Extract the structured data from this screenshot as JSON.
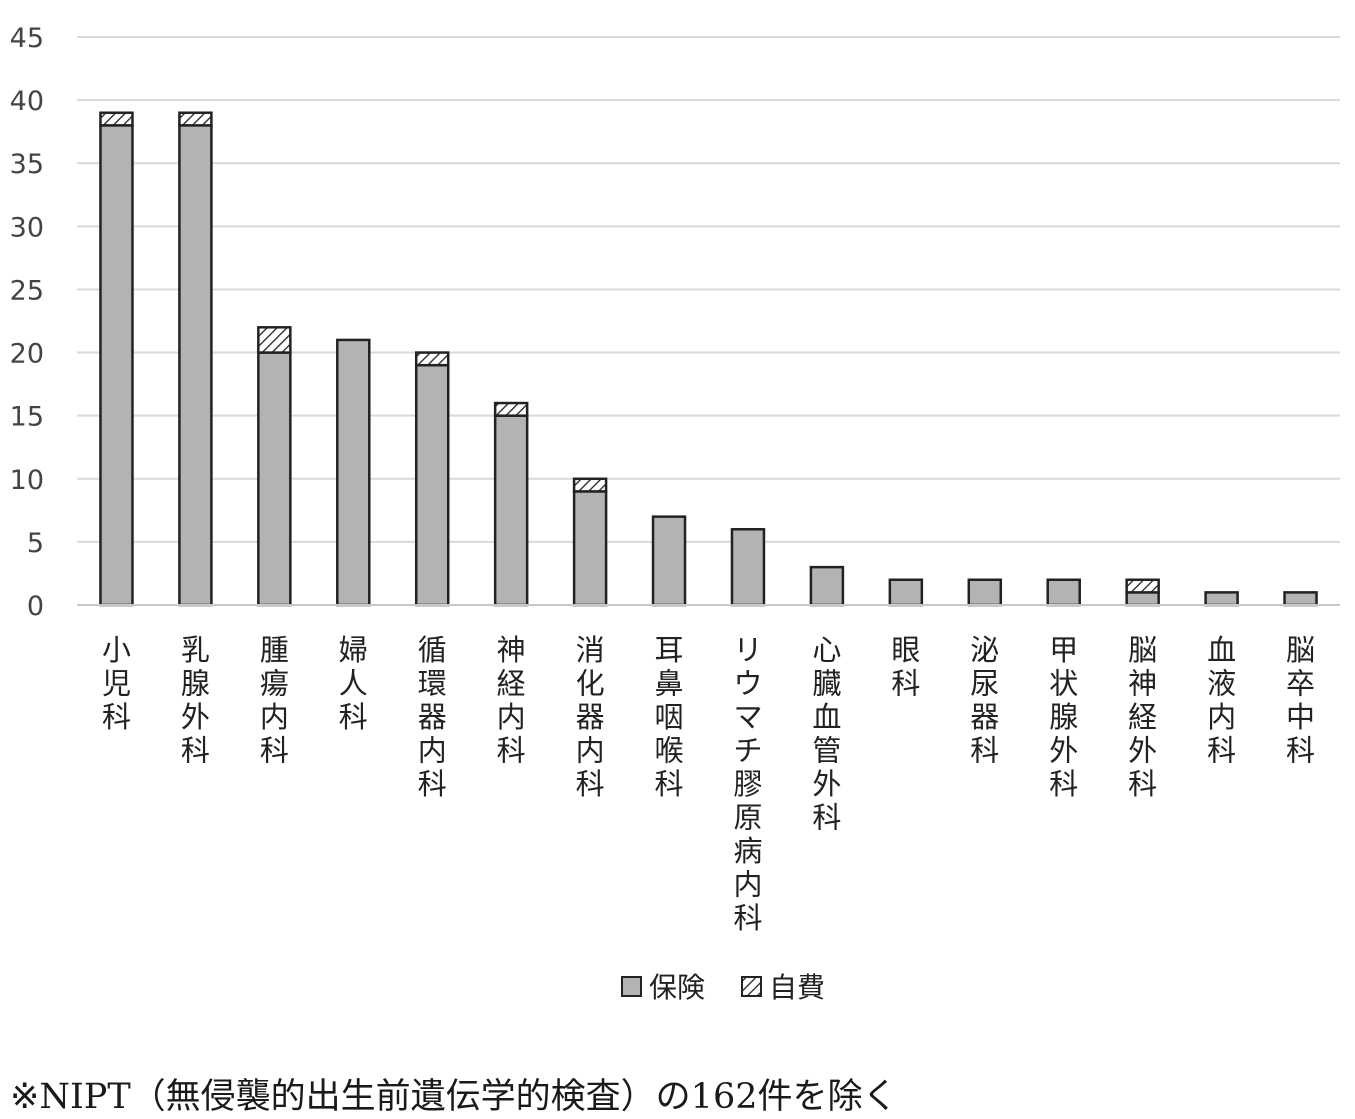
{
  "chart_data": {
    "type": "bar",
    "stacked": true,
    "categories": [
      "小児科",
      "乳腺外科",
      "腫瘍内科",
      "婦人科",
      "循環器内科",
      "神経内科",
      "消化器内科",
      "耳鼻咽喉科",
      "リウマチ膠原病内科",
      "心臓血管外科",
      "眼科",
      "泌尿器科",
      "甲状腺外科",
      "脳神経外科",
      "血液内科",
      "脳卒中科"
    ],
    "series": [
      {
        "name": "保険",
        "values": [
          38,
          38,
          20,
          21,
          19,
          15,
          9,
          7,
          6,
          3,
          2,
          2,
          2,
          1,
          1,
          1
        ],
        "color": "#b3b3b3",
        "pattern": "solid"
      },
      {
        "name": "自費",
        "values": [
          1,
          1,
          2,
          0,
          1,
          1,
          1,
          0,
          0,
          0,
          0,
          0,
          0,
          1,
          0,
          0
        ],
        "color": "#ffffff",
        "pattern": "hatched"
      }
    ],
    "yticks": [
      "0",
      "5",
      "10",
      "15",
      "20",
      "25",
      "30",
      "35",
      "40",
      "45"
    ],
    "ylim": [
      0,
      45
    ],
    "grid": true,
    "legend_position": "bottom"
  },
  "footnote": "※NIPT（無侵襲的出生前遺伝学的検査）の162件を除く"
}
